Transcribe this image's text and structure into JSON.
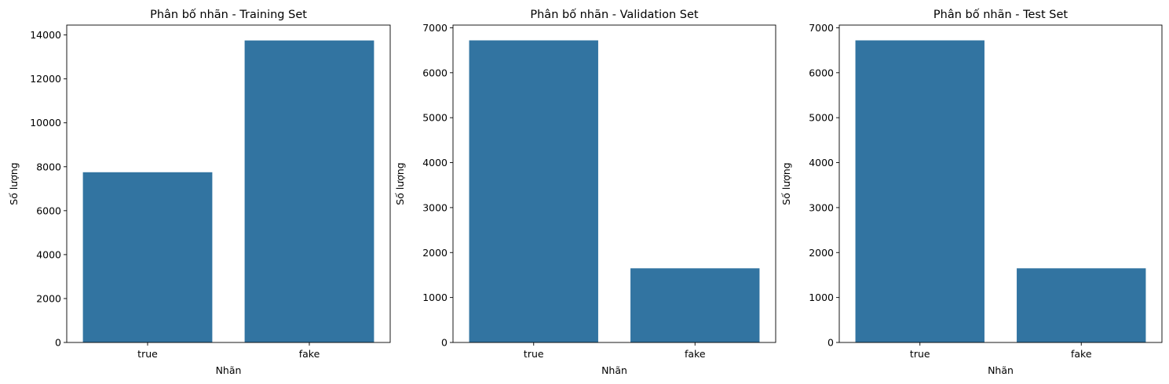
{
  "chart_data": [
    {
      "type": "bar",
      "title": "Phân bố nhãn - Training Set",
      "xlabel": "Nhãn",
      "ylabel": "Số lượng",
      "categories": [
        "true",
        "fake"
      ],
      "values": [
        7750,
        13750
      ],
      "ylim": [
        0,
        14450
      ],
      "yticks": [
        0,
        2000,
        4000,
        6000,
        8000,
        10000,
        12000,
        14000
      ],
      "color": "#3274a1",
      "grid": false
    },
    {
      "type": "bar",
      "title": "Phân bố nhãn - Validation Set",
      "xlabel": "Nhãn",
      "ylabel": "Số lượng",
      "categories": [
        "true",
        "fake"
      ],
      "values": [
        6720,
        1650
      ],
      "ylim": [
        0,
        7060
      ],
      "yticks": [
        0,
        1000,
        2000,
        3000,
        4000,
        5000,
        6000,
        7000
      ],
      "color": "#3274a1",
      "grid": false
    },
    {
      "type": "bar",
      "title": "Phân bố nhãn - Test Set",
      "xlabel": "Nhãn",
      "ylabel": "Số lượng",
      "categories": [
        "true",
        "fake"
      ],
      "values": [
        6720,
        1650
      ],
      "ylim": [
        0,
        7060
      ],
      "yticks": [
        0,
        1000,
        2000,
        3000,
        4000,
        5000,
        6000,
        7000
      ],
      "color": "#3274a1",
      "grid": false
    }
  ]
}
